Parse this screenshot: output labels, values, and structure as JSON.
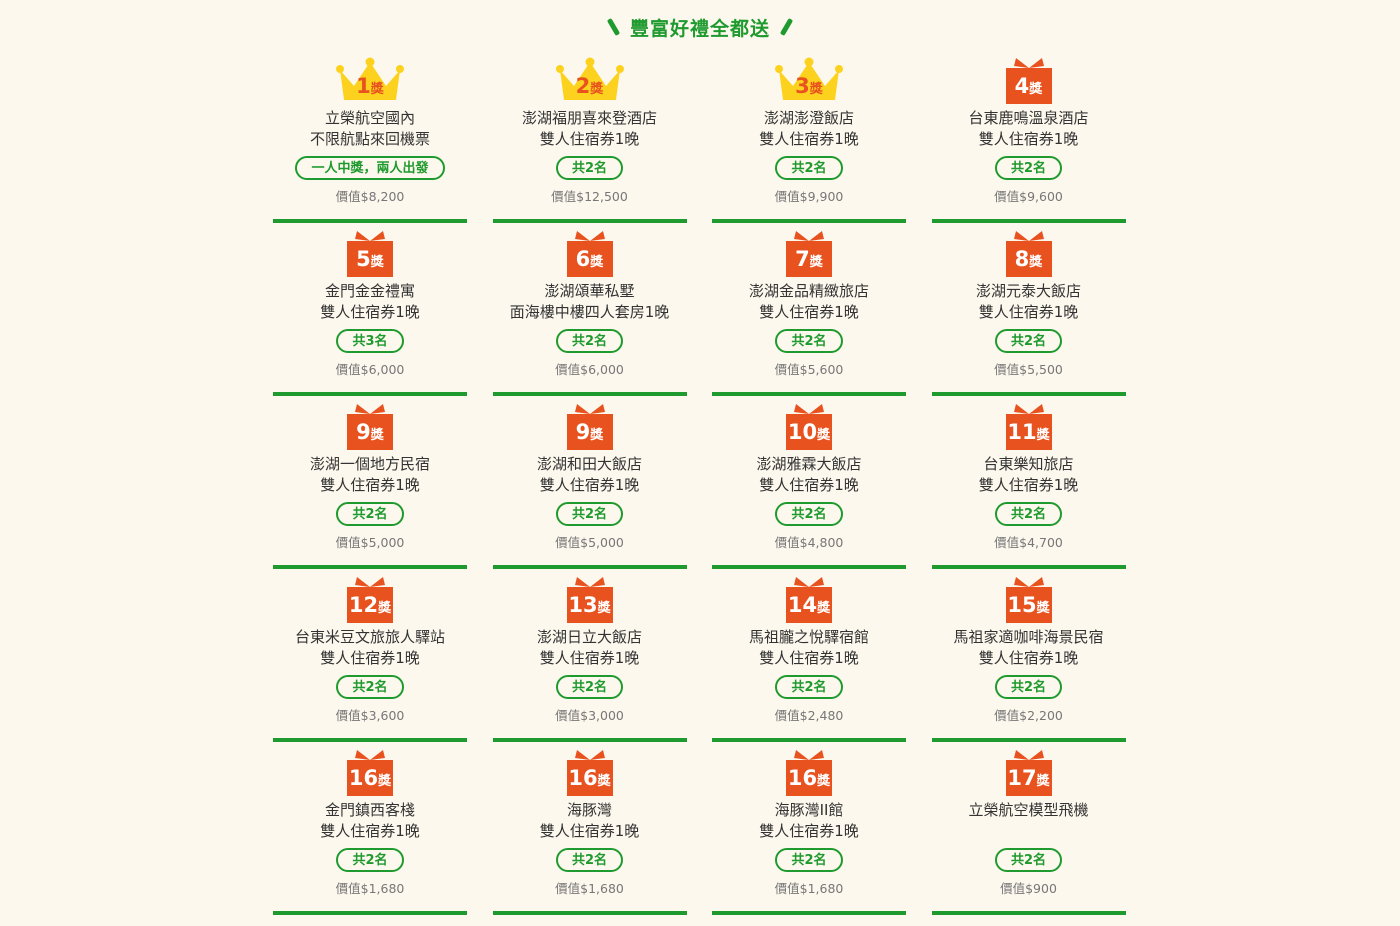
{
  "header": {
    "title": "豐富好禮全都送"
  },
  "colors": {
    "green": "#1f9a2e",
    "gold": "#fdd21e",
    "orange": "#e8521f"
  },
  "suffix": "獎",
  "prizes": [
    {
      "rank": "1",
      "icon": "crown-icon",
      "line1": "立榮航空國內",
      "line2": "不限航點來回機票",
      "pill": "一人中獎，兩人出發",
      "value": "價值$8,200"
    },
    {
      "rank": "2",
      "icon": "crown-icon",
      "line1": "澎湖福朋喜來登酒店",
      "line2": "雙人住宿券1晚",
      "pill": "共2名",
      "value": "價值$12,500"
    },
    {
      "rank": "3",
      "icon": "crown-icon",
      "line1": "澎湖澎澄飯店",
      "line2": "雙人住宿券1晚",
      "pill": "共2名",
      "value": "價值$9,900"
    },
    {
      "rank": "4",
      "icon": "gift-box-icon",
      "line1": "台東鹿鳴溫泉酒店",
      "line2": "雙人住宿券1晚",
      "pill": "共2名",
      "value": "價值$9,600"
    },
    {
      "rank": "5",
      "icon": "gift-box-icon",
      "line1": "金門金金禮寓",
      "line2": "雙人住宿券1晚",
      "pill": "共3名",
      "value": "價值$6,000"
    },
    {
      "rank": "6",
      "icon": "gift-box-icon",
      "line1": "澎湖頌華私墅",
      "line2": "面海樓中樓四人套房1晚",
      "pill": "共2名",
      "value": "價值$6,000"
    },
    {
      "rank": "7",
      "icon": "gift-box-icon",
      "line1": "澎湖金品精緻旅店",
      "line2": "雙人住宿券1晚",
      "pill": "共2名",
      "value": "價值$5,600"
    },
    {
      "rank": "8",
      "icon": "gift-box-icon",
      "line1": "澎湖元泰大飯店",
      "line2": "雙人住宿券1晚",
      "pill": "共2名",
      "value": "價值$5,500"
    },
    {
      "rank": "9",
      "icon": "gift-box-icon",
      "line1": "澎湖一個地方民宿",
      "line2": "雙人住宿券1晚",
      "pill": "共2名",
      "value": "價值$5,000"
    },
    {
      "rank": "9",
      "icon": "gift-box-icon",
      "line1": "澎湖和田大飯店",
      "line2": "雙人住宿券1晚",
      "pill": "共2名",
      "value": "價值$5,000"
    },
    {
      "rank": "10",
      "icon": "gift-box-icon",
      "line1": "澎湖雅霖大飯店",
      "line2": "雙人住宿券1晚",
      "pill": "共2名",
      "value": "價值$4,800"
    },
    {
      "rank": "11",
      "icon": "gift-box-icon",
      "line1": "台東樂知旅店",
      "line2": "雙人住宿券1晚",
      "pill": "共2名",
      "value": "價值$4,700"
    },
    {
      "rank": "12",
      "icon": "gift-box-icon",
      "line1": "台東米豆文旅旅人驛站",
      "line2": "雙人住宿券1晚",
      "pill": "共2名",
      "value": "價值$3,600"
    },
    {
      "rank": "13",
      "icon": "gift-box-icon",
      "line1": "澎湖日立大飯店",
      "line2": "雙人住宿券1晚",
      "pill": "共2名",
      "value": "價值$3,000"
    },
    {
      "rank": "14",
      "icon": "gift-box-icon",
      "line1": "馬祖朧之悅驛宿館",
      "line2": "雙人住宿券1晚",
      "pill": "共2名",
      "value": "價值$2,480"
    },
    {
      "rank": "15",
      "icon": "gift-box-icon",
      "line1": "馬祖家適咖啡海景民宿",
      "line2": "雙人住宿券1晚",
      "pill": "共2名",
      "value": "價值$2,200"
    },
    {
      "rank": "16",
      "icon": "gift-box-icon",
      "line1": "金門鎮西客棧",
      "line2": "雙人住宿券1晚",
      "pill": "共2名",
      "value": "價值$1,680"
    },
    {
      "rank": "16",
      "icon": "gift-box-icon",
      "line1": "海豚灣",
      "line2": "雙人住宿券1晚",
      "pill": "共2名",
      "value": "價值$1,680"
    },
    {
      "rank": "16",
      "icon": "gift-box-icon",
      "line1": "海豚灣II館",
      "line2": "雙人住宿券1晚",
      "pill": "共2名",
      "value": "價值$1,680"
    },
    {
      "rank": "17",
      "icon": "gift-box-icon",
      "line1": "立榮航空模型飛機",
      "line2": "",
      "pill": "共2名",
      "value": "價值$900"
    }
  ]
}
